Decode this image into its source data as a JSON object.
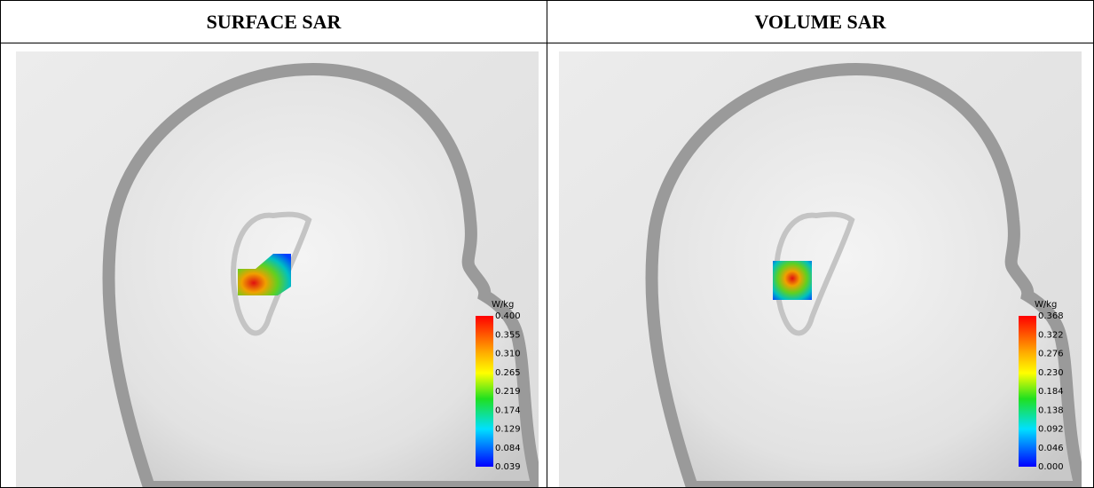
{
  "panels": [
    {
      "title": "SURFACE SAR",
      "unit": "W/kg",
      "scale_labels": [
        "0.400",
        "0.355",
        "0.310",
        "0.265",
        "0.219",
        "0.174",
        "0.129",
        "0.084",
        "0.039"
      ]
    },
    {
      "title": "VOLUME SAR",
      "unit": "W/kg",
      "scale_labels": [
        "0.368",
        "0.322",
        "0.276",
        "0.230",
        "0.184",
        "0.138",
        "0.092",
        "0.046",
        "0.000"
      ]
    }
  ]
}
